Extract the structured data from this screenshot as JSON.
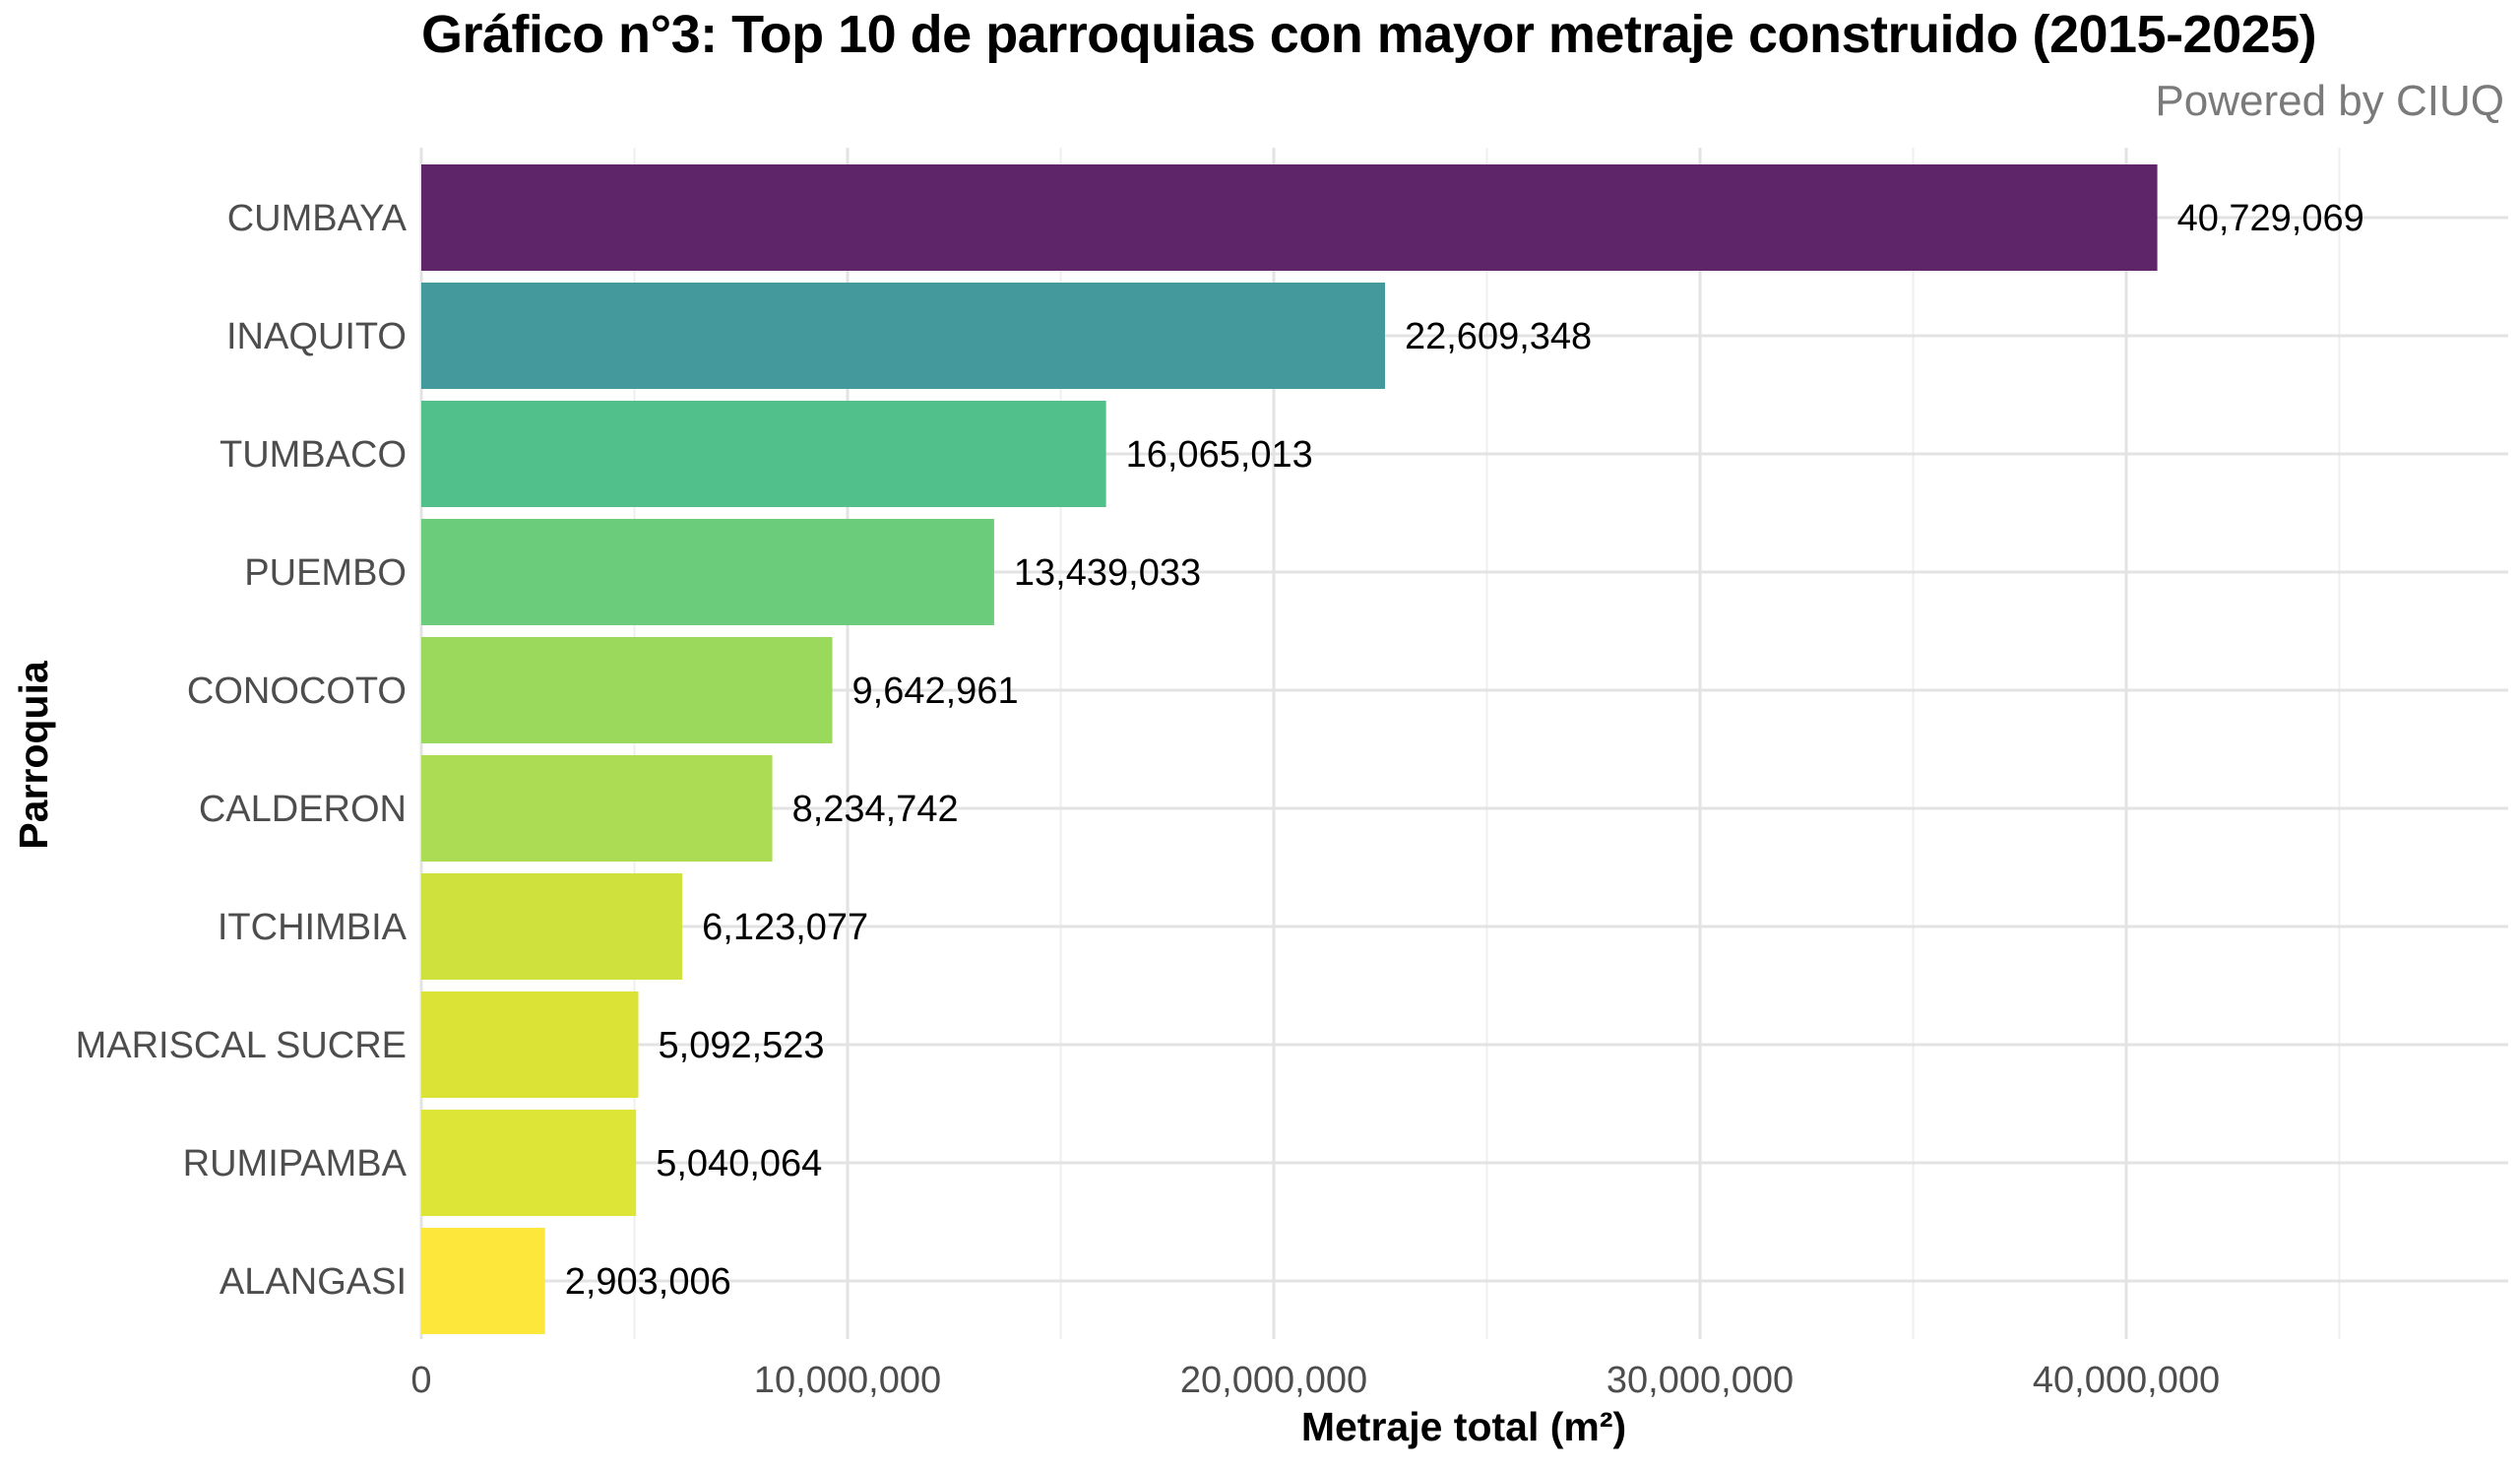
{
  "header": {
    "title": "Gráfico n°3: Top 10 de parroquias con mayor metraje construido (2015-2025)",
    "subtitle": "Powered by CIUQ"
  },
  "chart_data": {
    "type": "bar",
    "orientation": "horizontal",
    "title": "Gráfico n°3: Top 10 de parroquias con mayor metraje construido (2015-2025)",
    "subtitle": "Powered by CIUQ",
    "xlabel": "Metraje total (m²)",
    "ylabel": "Parroquia",
    "xlim": [
      0,
      48500000
    ],
    "x_ticks": [
      0,
      10000000,
      20000000,
      30000000,
      40000000
    ],
    "x_tick_labels": [
      "0",
      "10,000,000",
      "20,000,000",
      "30,000,000",
      "40,000,000"
    ],
    "grid": true,
    "categories": [
      "CUMBAYA",
      "INAQUITO",
      "TUMBACO",
      "PUEMBO",
      "CONOCOTO",
      "CALDERON",
      "ITCHIMBIA",
      "MARISCAL SUCRE",
      "RUMIPAMBA",
      "ALANGASI"
    ],
    "values": [
      40729069,
      22609348,
      16065013,
      13439033,
      9642961,
      8234742,
      6123077,
      5092523,
      5040064,
      2903006
    ],
    "value_labels": [
      "40,729,069",
      "22,609,348",
      "16,065,013",
      "13,439,033",
      "9,642,961",
      "8,234,742",
      "6,123,077",
      "5,092,523",
      "5,040,064",
      "2,903,006"
    ],
    "colors": [
      "#5e2569",
      "#43999b",
      "#51c08a",
      "#6bcd7c",
      "#9bd95c",
      "#abdc53",
      "#cfe13c",
      "#dbe336",
      "#dde536",
      "#fde73a"
    ]
  }
}
